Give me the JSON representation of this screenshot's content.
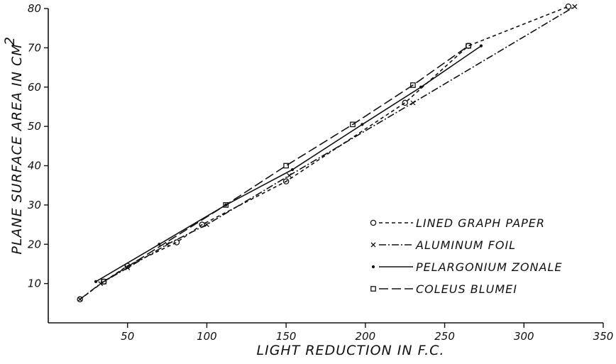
{
  "chart_data": {
    "type": "line",
    "title": "",
    "xlabel": "LIGHT REDUCTION IN F.C.",
    "ylabel": "PLANE SURFACE AREA IN CM",
    "ylabel_superscript": "2",
    "xlim": [
      0,
      350
    ],
    "ylim": [
      0,
      80
    ],
    "x_ticks": [
      50,
      100,
      150,
      200,
      250,
      300,
      350
    ],
    "y_ticks": [
      10,
      20,
      30,
      40,
      50,
      60,
      70,
      80
    ],
    "grid": false,
    "legend_position": "bottom-right",
    "series": [
      {
        "name": "LINED GRAPH PAPER",
        "marker": "circle",
        "line_style": "short-dash",
        "points": [
          [
            20,
            6
          ],
          [
            35,
            10.5
          ],
          [
            50,
            14.5
          ],
          [
            81,
            20.5
          ],
          [
            97,
            25
          ],
          [
            150,
            36
          ],
          [
            225,
            56
          ],
          [
            265,
            70.5
          ],
          [
            328,
            80.5
          ]
        ]
      },
      {
        "name": "ALUMINUM FOIL",
        "marker": "x",
        "line_style": "dash-dot",
        "points": [
          [
            20,
            6
          ],
          [
            33,
            10
          ],
          [
            50,
            14
          ],
          [
            75,
            20
          ],
          [
            100,
            25
          ],
          [
            152,
            37.5
          ],
          [
            230,
            56
          ],
          [
            332,
            80.5
          ]
        ]
      },
      {
        "name": "PELARGONIUM ZONALE",
        "marker": "dot",
        "line_style": "solid",
        "points": [
          [
            30,
            10.5
          ],
          [
            70,
            20
          ],
          [
            112,
            30
          ],
          [
            154,
            39
          ],
          [
            198,
            50.5
          ],
          [
            235,
            60
          ],
          [
            273,
            70.5
          ]
        ]
      },
      {
        "name": "COLEUS BLUMEI",
        "marker": "square",
        "line_style": "long-dash",
        "points": [
          [
            35,
            10.5
          ],
          [
            112,
            30
          ],
          [
            150,
            40
          ],
          [
            192,
            50.5
          ],
          [
            230,
            60.5
          ],
          [
            265,
            70.5
          ]
        ]
      }
    ],
    "legend_entries": [
      "LINED GRAPH PAPER",
      "ALUMINUM FOIL",
      "PELARGONIUM ZONALE",
      "COLEUS BLUMEI"
    ]
  }
}
